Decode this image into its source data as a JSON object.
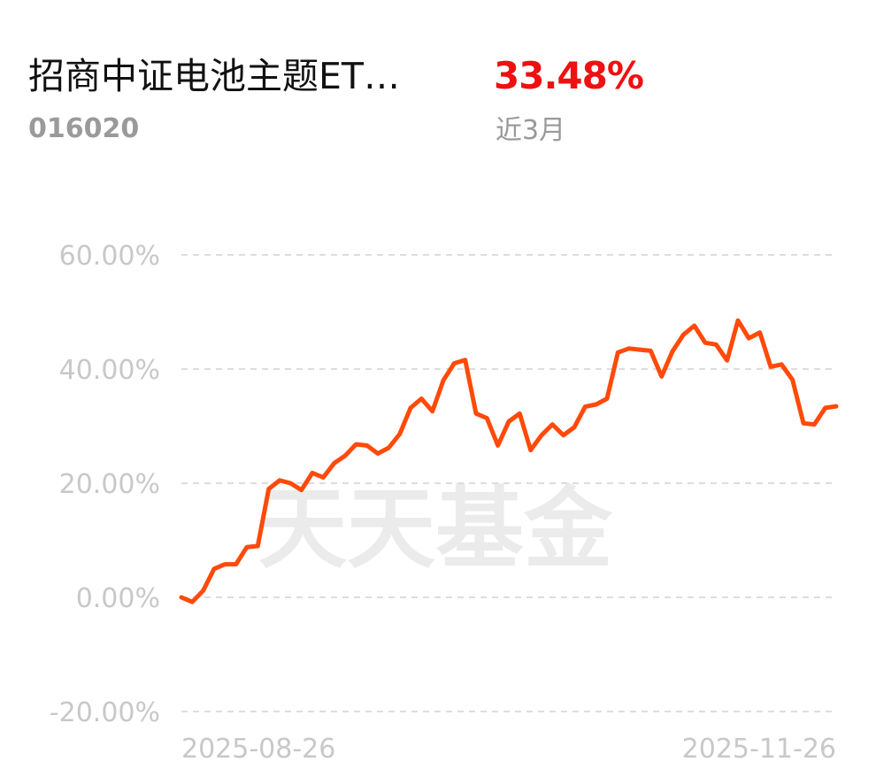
{
  "fund": {
    "name": "招商中证电池主题ET…",
    "code": "016020",
    "return_value": "33.48%",
    "return_period": "近3月"
  },
  "watermark": "天天基金",
  "colors": {
    "line": "#ff4a0a",
    "return_positive": "#ee1111",
    "grid": "#dddddd",
    "axis_text": "#c8c8c8"
  },
  "chart_data": {
    "type": "line",
    "y_ticks": [
      "60.00%",
      "40.00%",
      "20.00%",
      "0.00%",
      "-20.00%"
    ],
    "x_ticks": [
      "2025-08-26",
      "2025-11-26"
    ],
    "ylim": [
      -20,
      60
    ],
    "grid": true,
    "series": [
      {
        "values": [
          0.0,
          -0.8,
          1.2,
          5.0,
          5.8,
          5.8,
          8.8,
          9.0,
          19.0,
          20.5,
          20.0,
          18.8,
          21.8,
          21.0,
          23.5,
          24.8,
          26.8,
          26.6,
          25.2,
          26.2,
          28.6,
          33.2,
          34.8,
          32.6,
          38.0,
          41.0,
          41.6,
          32.2,
          31.4,
          26.6,
          30.8,
          32.2,
          25.8,
          28.4,
          30.3,
          28.4,
          29.8,
          33.4,
          33.8,
          34.8,
          42.9,
          43.6,
          43.4,
          43.2,
          38.7,
          43.1,
          46.0,
          47.6,
          44.6,
          44.3,
          41.5,
          48.5,
          45.4,
          46.4,
          40.4,
          40.8,
          38.1,
          30.5,
          30.3,
          33.2,
          33.48
        ]
      }
    ]
  }
}
